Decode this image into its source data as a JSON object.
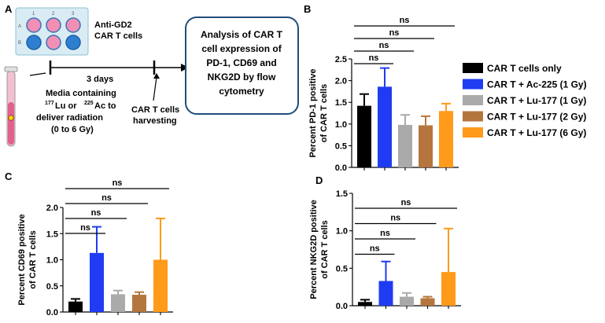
{
  "panels": {
    "A": "A",
    "B": "B",
    "C": "C",
    "D": "D"
  },
  "schematic": {
    "plate_col_labels": [
      "1",
      "2",
      "3"
    ],
    "plate_row_labels": [
      "A",
      "B"
    ],
    "cells_label_line1": "Anti-GD2",
    "cells_label_line2": "CAR T cells",
    "days_label": "3  days",
    "media_lines": [
      "Media containing",
      "Lu or",
      "Ac to",
      "deliver radiation",
      "(0 to 6 Gy)"
    ],
    "lu_mass": "177",
    "ac_mass": "225",
    "harvest_line1": "CAR T cells",
    "harvest_line2": "harvesting",
    "analysis_lines": [
      "Analysis of CAR T",
      "cell expression of",
      "PD-1, CD69 and",
      "NKG2D by flow",
      "cytometry"
    ]
  },
  "legend": [
    {
      "label": "CAR T cells only",
      "color": "#000000"
    },
    {
      "label": "CAR T + Ac-225 (1 Gy)",
      "color": "#1f3cf2"
    },
    {
      "label": "CAR T + Lu-177 (1 Gy)",
      "color": "#aaaaaa"
    },
    {
      "label": "CAR T + Lu-177 (2 Gy)",
      "color": "#b5763d"
    },
    {
      "label": "CAR T + Lu-177 (6 Gy)",
      "color": "#ff9a1a"
    }
  ],
  "chart_data": [
    {
      "id": "B",
      "type": "bar",
      "ylabel_line1": "Percent PD-1 positive",
      "ylabel_line2": "of CAR T cells",
      "ylim": [
        0,
        2.5
      ],
      "yticks": [
        "0.0",
        "0.5",
        "1.0",
        "1.5",
        "2.0",
        "2.5"
      ],
      "tick_values": [
        0,
        0.5,
        1.0,
        1.5,
        2.0,
        2.5
      ],
      "categories": [
        "CAR T cells only",
        "CAR T + Ac-225 (1 Gy)",
        "CAR T + Lu-177 (1 Gy)",
        "CAR T + Lu-177 (2 Gy)",
        "CAR T + Lu-177 (6 Gy)"
      ],
      "values": [
        1.42,
        1.86,
        0.98,
        0.97,
        1.3
      ],
      "errors": [
        0.27,
        0.43,
        0.23,
        0.21,
        0.17
      ],
      "significance": [
        {
          "from": 0,
          "to": 1,
          "label": "ns"
        },
        {
          "from": 0,
          "to": 2,
          "label": "ns"
        },
        {
          "from": 0,
          "to": 3,
          "label": "ns"
        },
        {
          "from": 0,
          "to": 4,
          "label": "ns"
        }
      ]
    },
    {
      "id": "C",
      "type": "bar",
      "ylabel_line1": "Percent CD69 positive",
      "ylabel_line2": "of CAR T cells",
      "ylim": [
        0,
        2.0
      ],
      "yticks": [
        "0.0",
        "0.5",
        "1.0",
        "1.5",
        "2.0"
      ],
      "tick_values": [
        0,
        0.5,
        1.0,
        1.5,
        2.0
      ],
      "categories": [
        "CAR T cells only",
        "CAR T + Ac-225 (1 Gy)",
        "CAR T + Lu-177 (1 Gy)",
        "CAR T + Lu-177 (2 Gy)",
        "CAR T + Lu-177 (6 Gy)"
      ],
      "values": [
        0.2,
        1.13,
        0.34,
        0.33,
        1.0
      ],
      "errors": [
        0.05,
        0.5,
        0.07,
        0.05,
        0.79
      ],
      "significance": [
        {
          "from": 0,
          "to": 1,
          "label": "ns"
        },
        {
          "from": 0,
          "to": 2,
          "label": "ns"
        },
        {
          "from": 0,
          "to": 3,
          "label": "ns"
        },
        {
          "from": 0,
          "to": 4,
          "label": "ns"
        }
      ]
    },
    {
      "id": "D",
      "type": "bar",
      "ylabel_line1": "Percent NKG2D positive",
      "ylabel_line2": "of CAR T cells",
      "ylim": [
        0,
        1.5
      ],
      "yticks": [
        "0.0",
        "0.5",
        "1.0",
        "1.5"
      ],
      "tick_values": [
        0,
        0.5,
        1.0,
        1.5
      ],
      "categories": [
        "CAR T cells only",
        "CAR T + Ac-225 (1 Gy)",
        "CAR T + Lu-177 (1 Gy)",
        "CAR T + Lu-177 (2 Gy)",
        "CAR T + Lu-177 (6 Gy)"
      ],
      "values": [
        0.05,
        0.33,
        0.12,
        0.1,
        0.45
      ],
      "errors": [
        0.03,
        0.26,
        0.05,
        0.02,
        0.58
      ],
      "significance": [
        {
          "from": 0,
          "to": 1,
          "label": "ns"
        },
        {
          "from": 0,
          "to": 2,
          "label": "ns"
        },
        {
          "from": 0,
          "to": 3,
          "label": "ns"
        },
        {
          "from": 0,
          "to": 4,
          "label": "ns"
        }
      ]
    }
  ]
}
